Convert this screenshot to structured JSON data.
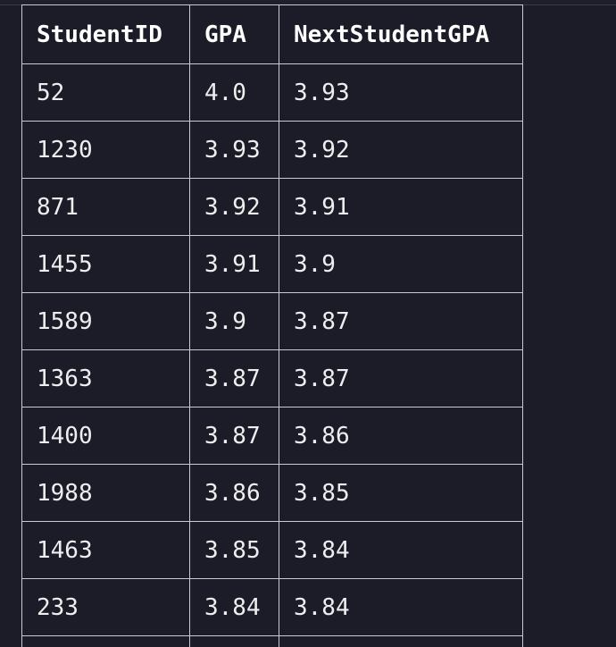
{
  "table": {
    "columns": [
      "StudentID",
      "GPA",
      "NextStudentGPA"
    ],
    "rows": [
      [
        "52",
        "4.0",
        "3.93"
      ],
      [
        "1230",
        "3.93",
        "3.92"
      ],
      [
        "871",
        "3.92",
        "3.91"
      ],
      [
        "1455",
        "3.91",
        "3.9"
      ],
      [
        "1589",
        "3.9",
        "3.87"
      ],
      [
        "1363",
        "3.87",
        "3.87"
      ],
      [
        "1400",
        "3.87",
        "3.86"
      ],
      [
        "1988",
        "3.86",
        "3.85"
      ],
      [
        "1463",
        "3.85",
        "3.84"
      ],
      [
        "233",
        "3.84",
        "3.84"
      ]
    ]
  }
}
